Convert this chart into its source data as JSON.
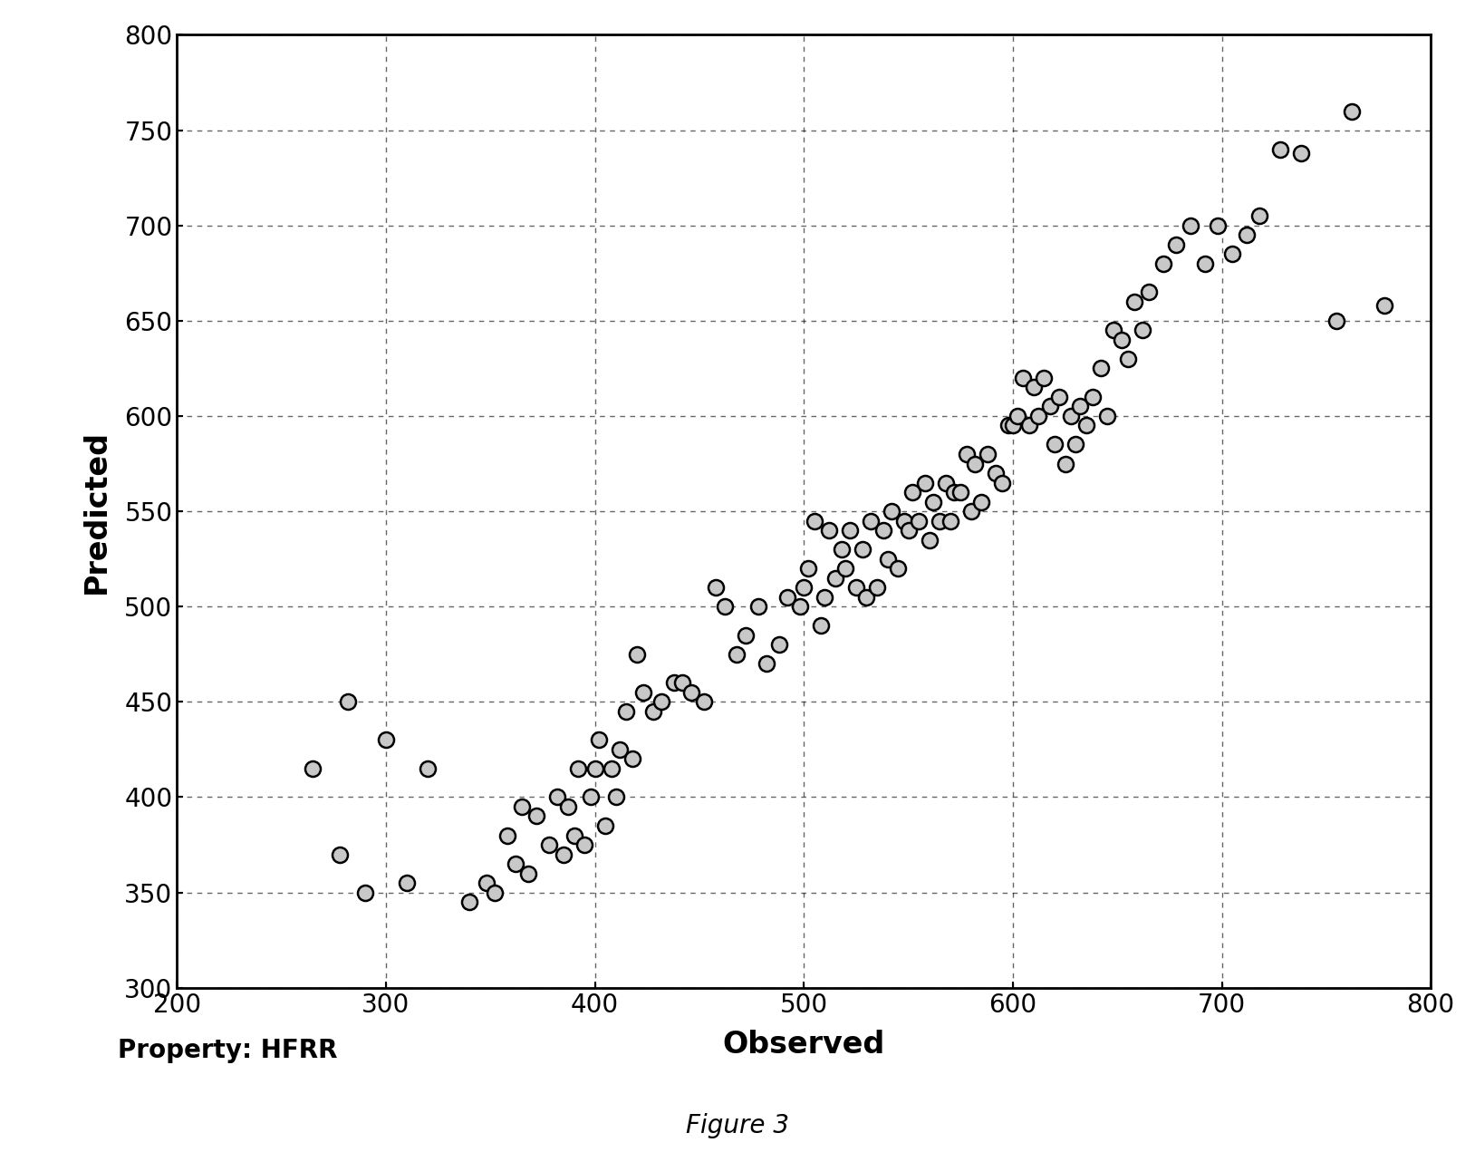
{
  "title": "Figure 3",
  "xlabel": "Observed",
  "ylabel": "Predicted",
  "property_label": "Property: HFRR",
  "xlim": [
    200,
    800
  ],
  "ylim": [
    300,
    800
  ],
  "xticks": [
    200,
    300,
    400,
    500,
    600,
    700,
    800
  ],
  "yticks": [
    300,
    350,
    400,
    450,
    500,
    550,
    600,
    650,
    700,
    750,
    800
  ],
  "background_color": "#ffffff",
  "marker_edge_color": "#000000",
  "marker_face_color": "#c8c8c8",
  "x_data": [
    265,
    278,
    282,
    290,
    300,
    310,
    320,
    340,
    348,
    352,
    358,
    362,
    365,
    368,
    372,
    378,
    382,
    385,
    387,
    390,
    392,
    395,
    398,
    400,
    402,
    405,
    408,
    410,
    412,
    415,
    418,
    420,
    423,
    428,
    432,
    438,
    442,
    446,
    452,
    458,
    462,
    468,
    472,
    478,
    482,
    488,
    492,
    498,
    500,
    502,
    505,
    508,
    510,
    512,
    515,
    518,
    520,
    522,
    525,
    528,
    530,
    532,
    535,
    538,
    540,
    542,
    545,
    548,
    550,
    552,
    555,
    558,
    560,
    562,
    565,
    568,
    570,
    572,
    575,
    578,
    580,
    582,
    585,
    588,
    592,
    595,
    598,
    600,
    602,
    605,
    608,
    610,
    612,
    615,
    618,
    620,
    622,
    625,
    628,
    630,
    632,
    635,
    638,
    642,
    645,
    648,
    652,
    655,
    658,
    662,
    665,
    672,
    678,
    685,
    692,
    698,
    705,
    712,
    718,
    728,
    738,
    755,
    762,
    778
  ],
  "y_data": [
    415,
    370,
    450,
    350,
    430,
    355,
    415,
    345,
    355,
    350,
    380,
    365,
    395,
    360,
    390,
    375,
    400,
    370,
    395,
    380,
    415,
    375,
    400,
    415,
    430,
    385,
    415,
    400,
    425,
    445,
    420,
    475,
    455,
    445,
    450,
    460,
    460,
    455,
    450,
    510,
    500,
    475,
    485,
    500,
    470,
    480,
    505,
    500,
    510,
    520,
    545,
    490,
    505,
    540,
    515,
    530,
    520,
    540,
    510,
    530,
    505,
    545,
    510,
    540,
    525,
    550,
    520,
    545,
    540,
    560,
    545,
    565,
    535,
    555,
    545,
    565,
    545,
    560,
    560,
    580,
    550,
    575,
    555,
    580,
    570,
    565,
    595,
    595,
    600,
    620,
    595,
    615,
    600,
    620,
    605,
    585,
    610,
    575,
    600,
    585,
    605,
    595,
    610,
    625,
    600,
    645,
    640,
    630,
    660,
    645,
    665,
    680,
    690,
    700,
    680,
    700,
    685,
    695,
    705,
    740,
    738,
    650,
    760,
    658
  ]
}
